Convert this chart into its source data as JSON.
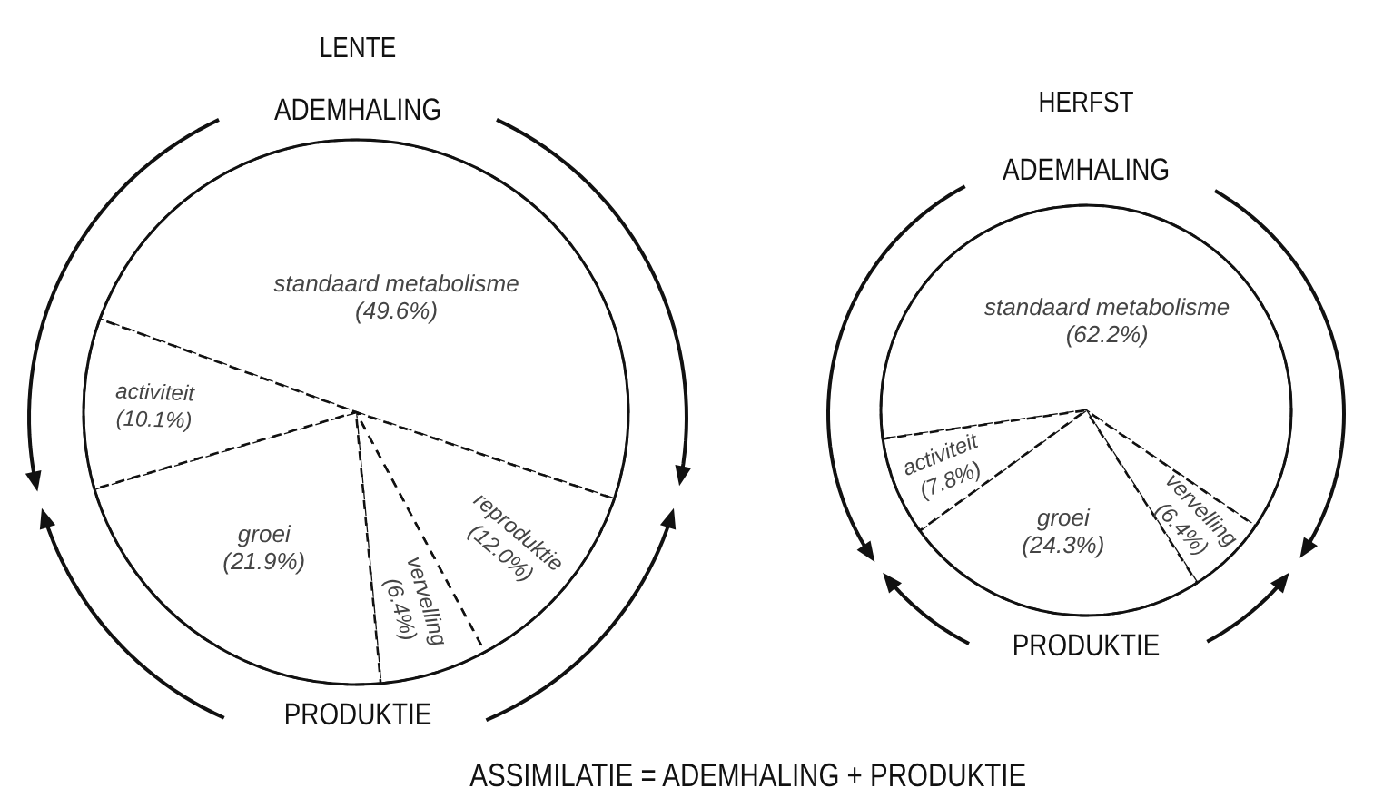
{
  "chart_data": [
    {
      "type": "pie",
      "title": "LENTE",
      "categories": [
        "standaard metabolisme",
        "reproduktie",
        "vervelling",
        "groei",
        "activiteit"
      ],
      "values": [
        49.6,
        12.0,
        6.4,
        21.9,
        10.1
      ],
      "value_labels": [
        "(49.6%)",
        "(12.0%)",
        "(6.4%)",
        "(21.9%)",
        "(10.1%)"
      ],
      "colors": [
        "#ffffff",
        "#ffffff",
        "#ffffff",
        "#ffffff",
        "#ffffff"
      ],
      "line_style": "dashed",
      "annotations": [
        "ADEMHALING",
        "PRODUKTIE"
      ]
    },
    {
      "type": "pie",
      "title": "HERFST",
      "categories": [
        "standaard metabolisme",
        "vervelling",
        "groei",
        "activiteit"
      ],
      "values": [
        62.2,
        6.4,
        24.3,
        7.8
      ],
      "value_labels": [
        "(62.2%)",
        "(6.4%)",
        "(24.3%)",
        "(7.8%)"
      ],
      "colors": [
        "#ffffff",
        "#ffffff",
        "#ffffff",
        "#ffffff"
      ],
      "line_style": "dashed",
      "annotations": [
        "ADEMHALING",
        "PRODUKTIE",
        "ASSIMILATIE = ADEMHALING + PRODUKTIE"
      ]
    }
  ]
}
